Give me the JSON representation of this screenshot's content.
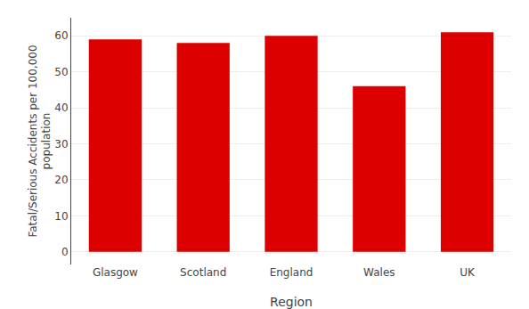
{
  "chart_data": {
    "type": "bar",
    "xlabel": "Region",
    "ylabel": "Fatal/Serious Accidents per 100,000\npopulation",
    "categories": [
      "Glasgow",
      "Scotland",
      "England",
      "Wales",
      "UK"
    ],
    "values": [
      59,
      58,
      60,
      46,
      61
    ],
    "color": "#DD0000",
    "ylim": [
      -3.5,
      65
    ],
    "yticks": [
      0,
      10,
      20,
      30,
      40,
      50,
      60
    ],
    "grid": true
  }
}
